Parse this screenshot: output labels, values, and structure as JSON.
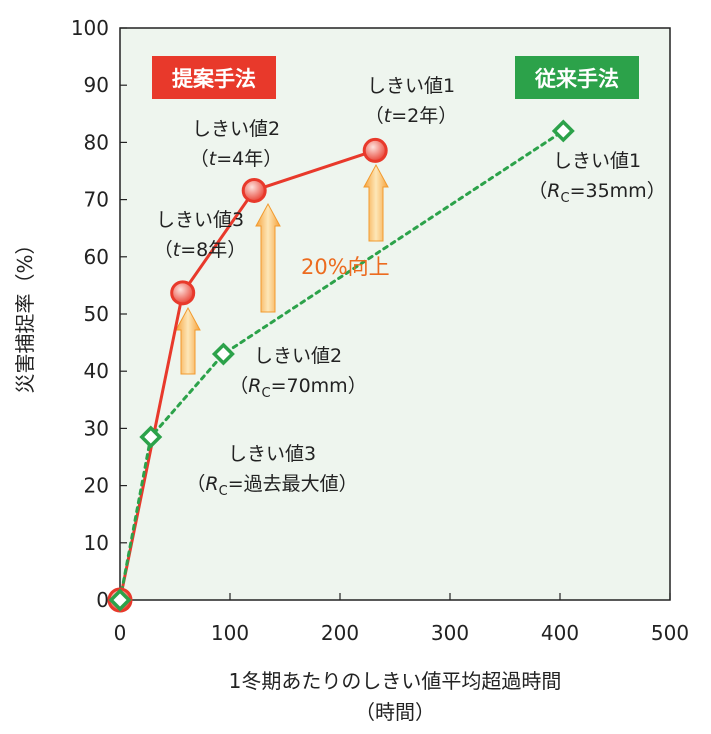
{
  "chart_data": {
    "type": "line",
    "xlabel": "1冬期あたりのしきい値平均超過時間",
    "xlabel_unit": "（時間）",
    "ylabel": "災害捕捉率（%）",
    "xlim": [
      0,
      500
    ],
    "ylim": [
      0,
      100
    ],
    "x_ticks": [
      0,
      100,
      200,
      300,
      400,
      500
    ],
    "y_ticks": [
      0,
      10,
      20,
      30,
      40,
      50,
      60,
      70,
      80,
      90,
      100
    ],
    "grid": false,
    "background": "#eef5ee",
    "series": [
      {
        "name": "提案手法",
        "color": "#e8392b",
        "style": "solid",
        "marker": "circle",
        "x": [
          0,
          57,
          122,
          232
        ],
        "y": [
          0,
          53.7,
          71.6,
          78.6
        ]
      },
      {
        "name": "従来手法",
        "color": "#2ca24a",
        "style": "dotted",
        "marker": "diamond",
        "x": [
          0,
          28,
          94,
          403
        ],
        "y": [
          0,
          28.5,
          43,
          82
        ]
      }
    ],
    "badges": {
      "proposed": "提案手法",
      "conventional": "従来手法"
    },
    "annotations": {
      "proposed": [
        {
          "line1": "しきい値3",
          "pre": "（",
          "var": "t",
          "post": "=8年）"
        },
        {
          "line1": "しきい値2",
          "pre": "（",
          "var": "t",
          "post": "=4年）"
        },
        {
          "line1": "しきい値1",
          "pre": "（",
          "var": "t",
          "post": "=2年）"
        }
      ],
      "conventional": [
        {
          "line1": "しきい値3",
          "pre": "（",
          "var": "R",
          "sub": "C",
          "post": "=過去最大値）"
        },
        {
          "line1": "しきい値2",
          "pre": "（",
          "var": "R",
          "sub": "C",
          "post": "=70mm）"
        },
        {
          "line1": "しきい値1",
          "pre": "（",
          "var": "R",
          "sub": "C",
          "post": "=35mm）"
        }
      ]
    },
    "improvement_label": "20%向上",
    "improvement_color": "#f29a2e"
  }
}
